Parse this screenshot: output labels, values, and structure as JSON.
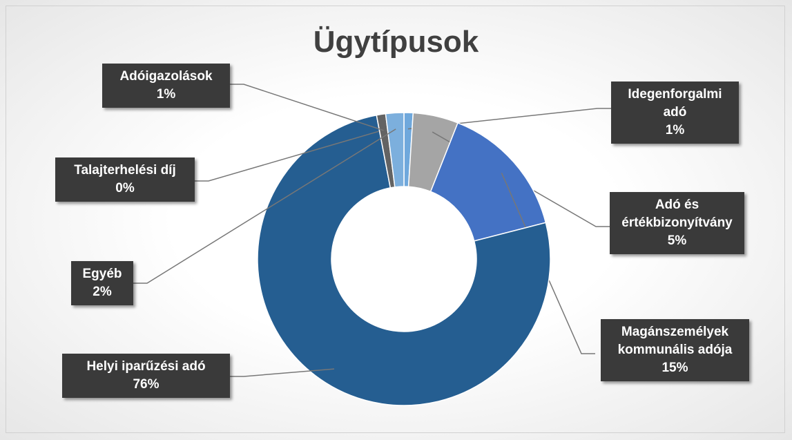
{
  "chart_data": {
    "type": "donut",
    "title": "Ügytípusok",
    "categories": [
      "Idegenforgalmi adó",
      "Adó és értékbizonyítvány",
      "Magánszemélyek kommunális adója",
      "Helyi iparűzési adó",
      "Talajterhelési díj",
      "Adóigazolások",
      "Egyéb"
    ],
    "values": [
      1,
      5,
      15,
      76,
      0,
      1,
      2
    ],
    "value_labels": [
      "1%",
      "5%",
      "15%",
      "76%",
      "0%",
      "1%",
      "2%"
    ],
    "colors": [
      "#6fa8dc",
      "#a5a5a5",
      "#4472c4",
      "#255e91",
      "#264478",
      "#636363",
      "#7cafdd"
    ]
  }
}
